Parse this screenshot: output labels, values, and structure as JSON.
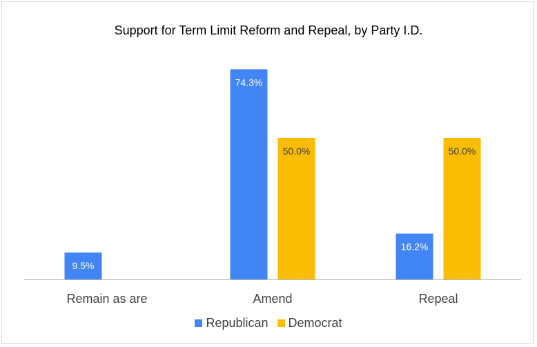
{
  "chart_data": {
    "type": "bar",
    "title": "Support for Term Limit Reform and Repeal, by Party I.D.",
    "categories": [
      "Remain as are",
      "Amend",
      "Repeal"
    ],
    "series": [
      {
        "name": "Republican",
        "color": "#4285f4",
        "values": [
          9.5,
          74.3,
          16.2
        ],
        "labels": [
          "9.5%",
          "74.3%",
          "16.2%"
        ],
        "label_color": "#ffffff"
      },
      {
        "name": "Democrat",
        "color": "#fbbc04",
        "values": [
          0,
          50.0,
          50.0
        ],
        "labels": [
          "",
          "50.0%",
          "50.0%"
        ],
        "label_color": "#404040"
      }
    ],
    "ylim": [
      0,
      80
    ],
    "grid": false,
    "legend_position": "bottom"
  }
}
